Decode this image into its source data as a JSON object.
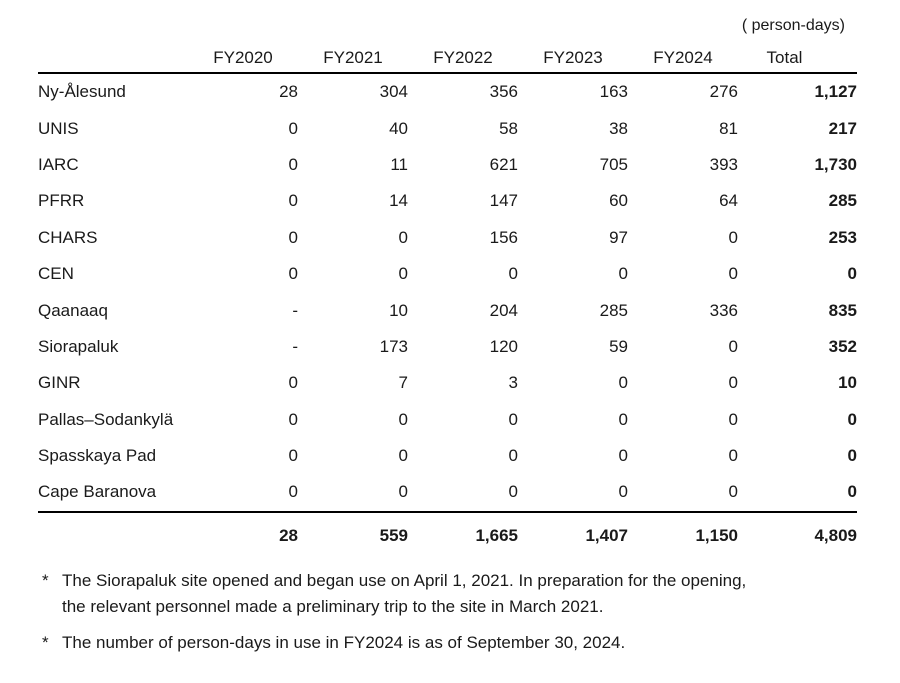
{
  "unit_label": "( person-days)",
  "table": {
    "columns": [
      "FY2020",
      "FY2021",
      "FY2022",
      "FY2023",
      "FY2024",
      "Total"
    ],
    "rows": [
      {
        "site": "Ny-Ålesund",
        "values": [
          "28",
          "304",
          "356",
          "163",
          "276",
          "1,127"
        ]
      },
      {
        "site": "UNIS",
        "values": [
          "0",
          "40",
          "58",
          "38",
          "81",
          "217"
        ]
      },
      {
        "site": "IARC",
        "values": [
          "0",
          "11",
          "621",
          "705",
          "393",
          "1,730"
        ]
      },
      {
        "site": "PFRR",
        "values": [
          "0",
          "14",
          "147",
          "60",
          "64",
          "285"
        ]
      },
      {
        "site": "CHARS",
        "values": [
          "0",
          "0",
          "156",
          "97",
          "0",
          "253"
        ]
      },
      {
        "site": "CEN",
        "values": [
          "0",
          "0",
          "0",
          "0",
          "0",
          "0"
        ]
      },
      {
        "site": "Qaanaaq",
        "values": [
          "-",
          "10",
          "204",
          "285",
          "336",
          "835"
        ]
      },
      {
        "site": "Siorapaluk",
        "values": [
          "-",
          "173",
          "120",
          "59",
          "0",
          "352"
        ]
      },
      {
        "site": "GINR",
        "values": [
          "0",
          "7",
          "3",
          "0",
          "0",
          "10"
        ]
      },
      {
        "site": "Pallas–Sodankylä",
        "values": [
          "0",
          "0",
          "0",
          "0",
          "0",
          "0"
        ]
      },
      {
        "site": "Spasskaya Pad",
        "values": [
          "0",
          "0",
          "0",
          "0",
          "0",
          "0"
        ]
      },
      {
        "site": "Cape Baranova",
        "values": [
          "0",
          "0",
          "0",
          "0",
          "0",
          "0"
        ]
      }
    ],
    "totals": {
      "values": [
        "28",
        "559",
        "1,665",
        "1,407",
        "1,150",
        "4,809"
      ]
    }
  },
  "footnotes": [
    {
      "marker": "*",
      "lines": [
        "The Siorapaluk site opened and began use on April 1, 2021. In preparation for the opening,",
        "the relevant personnel made a preliminary trip to the site in March 2021."
      ]
    },
    {
      "marker": "*",
      "lines": [
        "The number of person-days in use in FY2024 is as of September 30, 2024."
      ]
    }
  ],
  "colors": {
    "text": "#1a1a1a",
    "rule": "#000000",
    "background": "#ffffff"
  }
}
